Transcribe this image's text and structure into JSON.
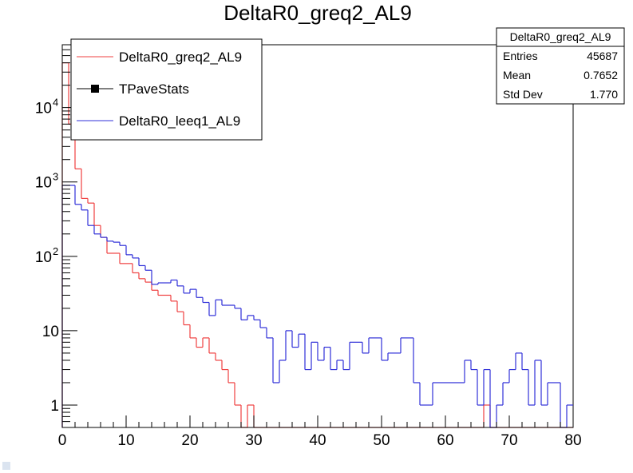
{
  "chart_data": {
    "type": "histogram",
    "title": "DeltaR0_greq2_AL9",
    "xlabel": "",
    "ylabel": "",
    "xlim": [
      0,
      80
    ],
    "ylim": [
      0.5,
      70000
    ],
    "yscale": "log",
    "x_ticks": [
      "0",
      "10",
      "20",
      "30",
      "40",
      "50",
      "60",
      "70",
      "80"
    ],
    "y_ticks": [
      {
        "value": 1,
        "base": "1",
        "exp": ""
      },
      {
        "value": 10,
        "base": "10",
        "exp": ""
      },
      {
        "value": 100,
        "base": "10",
        "exp": "2"
      },
      {
        "value": 1000,
        "base": "10",
        "exp": "3"
      },
      {
        "value": 10000,
        "base": "10",
        "exp": "4"
      }
    ],
    "bin_edges_start": 0,
    "bin_width": 1,
    "legend_position": "top-left",
    "legend": [
      {
        "label": "DeltaR0_greq2_AL9",
        "color": "#ef4040",
        "marker": "line"
      },
      {
        "label": "TPaveStats",
        "color": "#000000",
        "marker": "square"
      },
      {
        "label": "DeltaR0_leeq1_AL9",
        "color": "#3030d8",
        "marker": "line"
      }
    ],
    "series": [
      {
        "name": "DeltaR0_greq2_AL9",
        "color": "#ef4040",
        "values": [
          40000,
          6000,
          1500,
          600,
          520,
          260,
          180,
          110,
          110,
          80,
          80,
          60,
          50,
          45,
          35,
          30,
          30,
          25,
          18,
          12,
          8,
          6,
          8,
          5,
          4,
          3,
          2,
          1,
          0,
          1,
          0,
          0,
          0,
          0,
          0,
          0,
          0,
          0,
          0,
          0,
          0,
          0,
          0,
          0,
          0,
          0,
          0,
          0,
          0,
          0,
          0,
          0,
          0,
          0,
          0,
          0,
          0,
          0,
          0,
          0,
          0,
          0,
          0,
          0,
          0,
          0,
          1,
          0,
          0,
          0,
          0,
          0,
          0,
          0,
          0,
          0,
          0,
          0,
          0,
          0
        ]
      },
      {
        "name": "DeltaR0_leeq1_AL9",
        "color": "#3030d8",
        "values": [
          900,
          900,
          500,
          420,
          260,
          200,
          180,
          160,
          155,
          140,
          105,
          95,
          75,
          65,
          42,
          44,
          44,
          48,
          40,
          32,
          36,
          28,
          24,
          16,
          26,
          22,
          22,
          20,
          14,
          16,
          14,
          11,
          8,
          2,
          4,
          10,
          6,
          9,
          3,
          7,
          4,
          6,
          3,
          4,
          3,
          7,
          7,
          5,
          8,
          8,
          4,
          5,
          5,
          8,
          8,
          2,
          1,
          1,
          2,
          2,
          2,
          2,
          2,
          4,
          3,
          1,
          3,
          0,
          1,
          2,
          3,
          5,
          3,
          1,
          4,
          1,
          2,
          2,
          0,
          1
        ]
      }
    ]
  },
  "stats_box": {
    "title": "DeltaR0_greq2_AL9",
    "rows": [
      {
        "label": "Entries",
        "value": "45687"
      },
      {
        "label": "Mean",
        "value": "0.7652"
      },
      {
        "label": "Std Dev",
        "value": "1.770"
      }
    ]
  }
}
